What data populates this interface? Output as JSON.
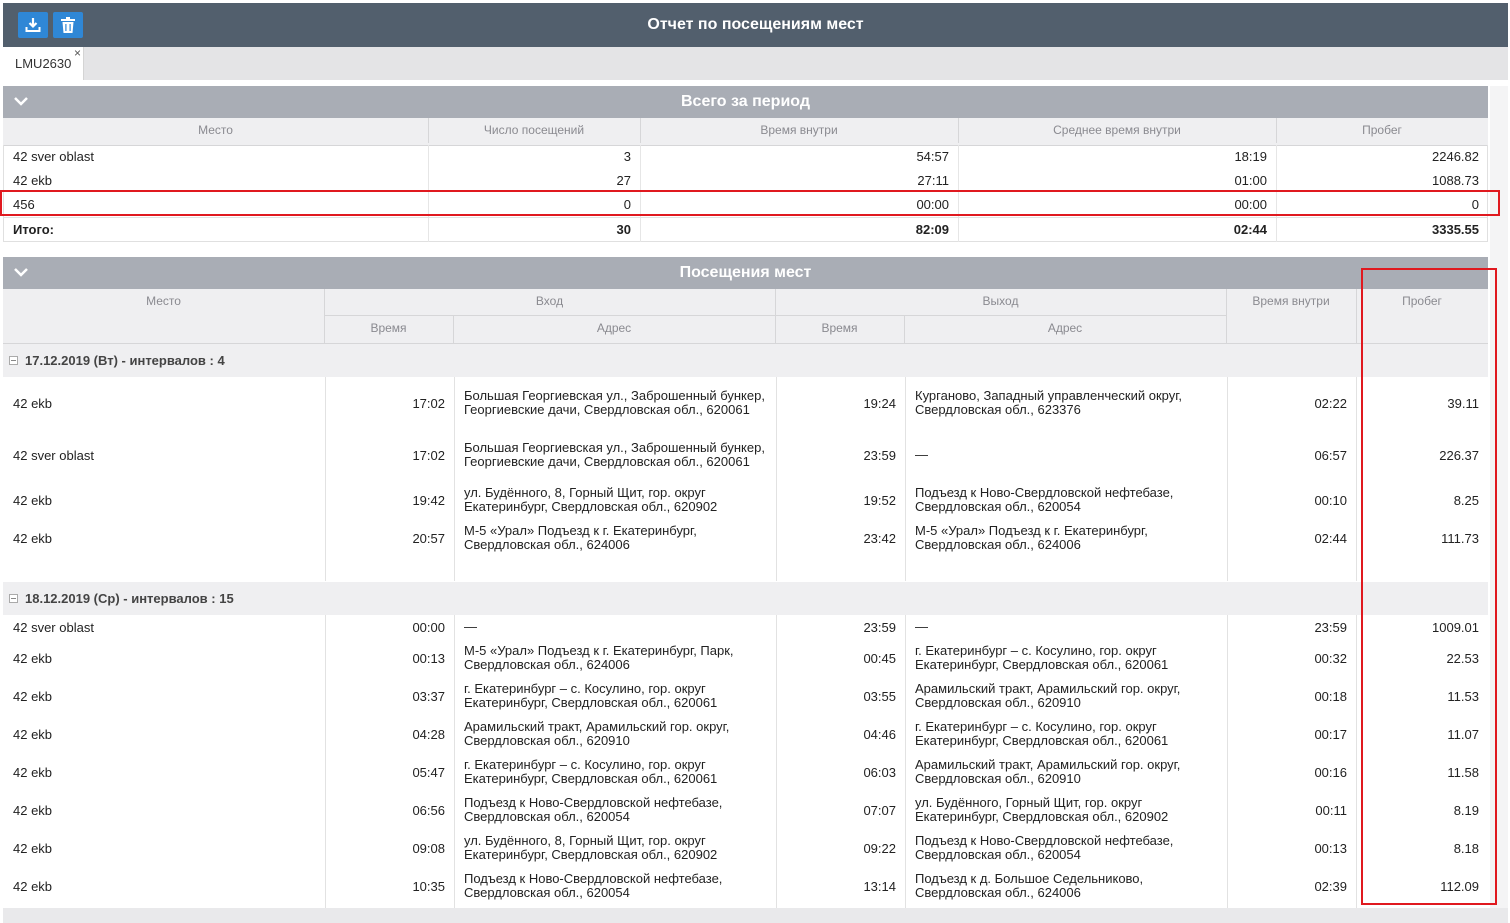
{
  "header": {
    "title": "Отчет по посещениям мест",
    "download_icon": "download-icon",
    "delete_icon": "trash-icon"
  },
  "tabs": [
    {
      "label": "LMU2630",
      "close": "×"
    }
  ],
  "summary": {
    "title": "Всего за период",
    "columns": [
      "Место",
      "Число посещений",
      "Время внутри",
      "Среднее время внутри",
      "Пробег"
    ],
    "rows": [
      {
        "place": "42 sver oblast",
        "visits": "3",
        "time": "54:57",
        "avg": "18:19",
        "mileage": "2246.82"
      },
      {
        "place": "42 ekb",
        "visits": "27",
        "time": "27:11",
        "avg": "01:00",
        "mileage": "1088.73"
      },
      {
        "place": "456",
        "visits": "0",
        "time": "00:00",
        "avg": "00:00",
        "mileage": "0"
      }
    ],
    "total": {
      "place": "Итого:",
      "visits": "30",
      "time": "82:09",
      "avg": "02:44",
      "mileage": "3335.55"
    }
  },
  "visits": {
    "title": "Посещения мест",
    "columns": {
      "place": "Место",
      "entry": "Вход",
      "exit": "Выход",
      "time": "Время",
      "address": "Адрес",
      "inside": "Время внутри",
      "mileage": "Пробег"
    },
    "groups": [
      {
        "label": "17.12.2019 (Вт) - интервалов : 4",
        "rows": [
          {
            "place": "42 ekb",
            "in_time": "17:02",
            "in_addr": "Большая Георгиевская ул., Заброшенный бункер, Георгиевские дачи, Свердловская обл., 620061",
            "out_time": "19:24",
            "out_addr": "Курганово, Западный управленческий округ, Свердловская обл., 623376",
            "inside": "02:22",
            "mileage": "39.11"
          },
          {
            "place": "42 sver oblast",
            "in_time": "17:02",
            "in_addr": "Большая Георгиевская ул., Заброшенный бункер, Георгиевские дачи, Свердловская обл., 620061",
            "out_time": "23:59",
            "out_addr": "—",
            "inside": "06:57",
            "mileage": "226.37"
          },
          {
            "place": "42 ekb",
            "in_time": "19:42",
            "in_addr": "ул. Будённого, 8, Горный Щит, гор. округ Екатеринбург, Свердловская обл., 620902",
            "out_time": "19:52",
            "out_addr": "Подъезд к Ново-Свердловской нефтебазе, Свердловская обл., 620054",
            "inside": "00:10",
            "mileage": "8.25"
          },
          {
            "place": "42 ekb",
            "in_time": "20:57",
            "in_addr": "М-5 «Урал» Подъезд к г. Екатеринбург, Свердловская обл., 624006",
            "out_time": "23:42",
            "out_addr": "М-5 «Урал» Подъезд к г. Екатеринбург, Свердловская обл., 624006",
            "inside": "02:44",
            "mileage": "111.73"
          }
        ]
      },
      {
        "label": "18.12.2019 (Ср) - интервалов : 15",
        "rows": [
          {
            "place": "42 sver oblast",
            "in_time": "00:00",
            "in_addr": "—",
            "out_time": "23:59",
            "out_addr": "—",
            "inside": "23:59",
            "mileage": "1009.01"
          },
          {
            "place": "42 ekb",
            "in_time": "00:13",
            "in_addr": "М-5 «Урал» Подъезд к г. Екатеринбург, Парк, Свердловская обл., 624006",
            "out_time": "00:45",
            "out_addr": "г. Екатеринбург – с. Косулино, гор. округ Екатеринбург, Свердловская обл., 620061",
            "inside": "00:32",
            "mileage": "22.53"
          },
          {
            "place": "42 ekb",
            "in_time": "03:37",
            "in_addr": "г. Екатеринбург – с. Косулино, гор. округ Екатеринбург, Свердловская обл., 620061",
            "out_time": "03:55",
            "out_addr": "Арамильский тракт, Арамильский гор. округ, Свердловская обл., 620910",
            "inside": "00:18",
            "mileage": "11.53"
          },
          {
            "place": "42 ekb",
            "in_time": "04:28",
            "in_addr": "Арамильский тракт, Арамильский гор. округ, Свердловская обл., 620910",
            "out_time": "04:46",
            "out_addr": "г. Екатеринбург – с. Косулино, гор. округ Екатеринбург, Свердловская обл., 620061",
            "inside": "00:17",
            "mileage": "11.07"
          },
          {
            "place": "42 ekb",
            "in_time": "05:47",
            "in_addr": "г. Екатеринбург – с. Косулино, гор. округ Екатеринбург, Свердловская обл., 620061",
            "out_time": "06:03",
            "out_addr": "Арамильский тракт, Арамильский гор. округ, Свердловская обл., 620910",
            "inside": "00:16",
            "mileage": "11.58"
          },
          {
            "place": "42 ekb",
            "in_time": "06:56",
            "in_addr": "Подъезд к Ново-Свердловской нефтебазе, Свердловская обл., 620054",
            "out_time": "07:07",
            "out_addr": "ул. Будённого, Горный Щит, гор. округ Екатеринбург, Свердловская обл., 620902",
            "inside": "00:11",
            "mileage": "8.19"
          },
          {
            "place": "42 ekb",
            "in_time": "09:08",
            "in_addr": "ул. Будённого, 8, Горный Щит, гор. округ Екатеринбург, Свердловская обл., 620902",
            "out_time": "09:22",
            "out_addr": "Подъезд к Ново-Свердловской нефтебазе, Свердловская обл., 620054",
            "inside": "00:13",
            "mileage": "8.18"
          },
          {
            "place": "42 ekb",
            "in_time": "10:35",
            "in_addr": "Подъезд к Ново-Свердловской нефтебазе, Свердловская обл., 620054",
            "out_time": "13:14",
            "out_addr": "Подъезд к д. Большое Седельниково, Свердловская обл., 624006",
            "inside": "02:39",
            "mileage": "112.09"
          }
        ]
      }
    ]
  },
  "annotation_color": "#e0191f"
}
